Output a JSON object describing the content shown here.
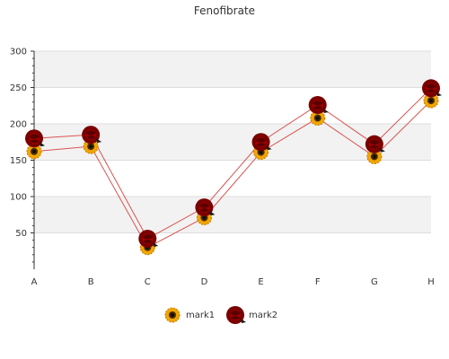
{
  "chart_data": {
    "type": "line",
    "title": "Fenofibrate",
    "xlabel": "",
    "ylabel": "",
    "categories": [
      "A",
      "B",
      "C",
      "D",
      "E",
      "F",
      "G",
      "H"
    ],
    "ylim": [
      0,
      300
    ],
    "yticks": [
      50,
      100,
      150,
      200,
      250,
      300
    ],
    "grid": true,
    "legend_position": "bottom",
    "series": [
      {
        "name": "mark1",
        "marker": "sunflower-icon",
        "values": [
          162,
          169,
          30,
          71,
          161,
          208,
          155,
          232
        ]
      },
      {
        "name": "mark2",
        "marker": "rose-icon",
        "values": [
          180,
          185,
          42,
          85,
          175,
          226,
          172,
          249
        ]
      }
    ],
    "colors": {
      "line": "#d9534f",
      "band": "#f2f2f2",
      "gridline": "#dddddd",
      "axis": "#333333"
    }
  }
}
